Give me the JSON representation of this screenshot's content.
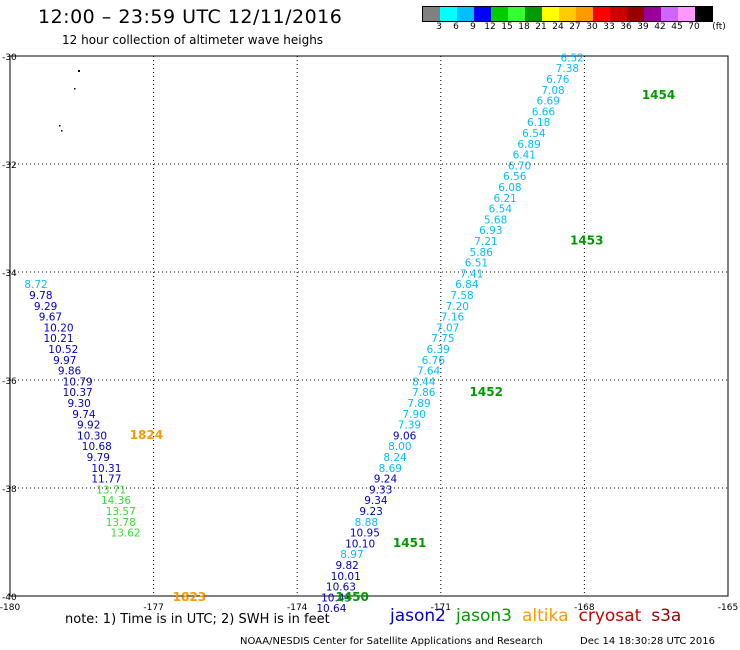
{
  "title": "12:00 – 23:59 UTC 12/11/2016",
  "subtitle": "12 hour collection of altimeter wave heighs",
  "colorbar": {
    "colors": [
      "#808080",
      "#00ffff",
      "#00bfff",
      "#0000ff",
      "#00cc00",
      "#33ff33",
      "#009900",
      "#ffff00",
      "#ffcc00",
      "#ff9900",
      "#ff0000",
      "#cc0000",
      "#990000",
      "#990099",
      "#cc66ff",
      "#ff99ff",
      "#000000"
    ],
    "ticks": [
      "3",
      "6",
      "9",
      "12",
      "15",
      "18",
      "21",
      "24",
      "27",
      "30",
      "33",
      "36",
      "39",
      "42",
      "45",
      "70",
      "(ft)"
    ]
  },
  "axes": {
    "lat_labels": [
      "-30",
      "-32",
      "-34",
      "-36",
      "-38",
      "-40"
    ],
    "lon_labels": [
      "-180",
      "-177",
      "-174",
      "-171",
      "-168",
      "-165"
    ]
  },
  "tracks": [
    {
      "satellite": "jason3",
      "time_labels": [
        {
          "text": "1454",
          "lat": -30.7,
          "lon": -166.8
        },
        {
          "text": "1453",
          "lat": -33.4,
          "lon": -168.3
        },
        {
          "text": "1452",
          "lat": -36.2,
          "lon": -170.4
        },
        {
          "text": "1451",
          "lat": -39.0,
          "lon": -172.0
        },
        {
          "text": "1450",
          "lat": -40.0,
          "lon": -173.2
        }
      ],
      "points": [
        {
          "lat": -30.1,
          "lon": -168.5,
          "v": "6.52",
          "c": "#00bfff"
        },
        {
          "lat": -30.3,
          "lon": -168.6,
          "v": "7.38",
          "c": "#00bfff"
        },
        {
          "lat": -30.5,
          "lon": -168.8,
          "v": "6.76",
          "c": "#00bfff"
        },
        {
          "lat": -30.7,
          "lon": -168.9,
          "v": "7.08",
          "c": "#00bfff"
        },
        {
          "lat": -30.9,
          "lon": -169.0,
          "v": "6.69",
          "c": "#00bfff"
        },
        {
          "lat": -31.1,
          "lon": -169.1,
          "v": "6.66",
          "c": "#00bfff"
        },
        {
          "lat": -31.3,
          "lon": -169.2,
          "v": "6.18",
          "c": "#00bfff"
        },
        {
          "lat": -31.5,
          "lon": -169.3,
          "v": "6.54",
          "c": "#00bfff"
        },
        {
          "lat": -31.7,
          "lon": -169.4,
          "v": "6.89",
          "c": "#00bfff"
        },
        {
          "lat": -31.9,
          "lon": -169.5,
          "v": "6.41",
          "c": "#00bfff"
        },
        {
          "lat": -32.1,
          "lon": -169.6,
          "v": "6.70",
          "c": "#00bfff"
        },
        {
          "lat": -32.3,
          "lon": -169.7,
          "v": "6.56",
          "c": "#00bfff"
        },
        {
          "lat": -32.5,
          "lon": -169.8,
          "v": "6.08",
          "c": "#00bfff"
        },
        {
          "lat": -32.7,
          "lon": -169.9,
          "v": "6.21",
          "c": "#00bfff"
        },
        {
          "lat": -32.9,
          "lon": -170.0,
          "v": "6.54",
          "c": "#00bfff"
        },
        {
          "lat": -33.1,
          "lon": -170.1,
          "v": "5.68",
          "c": "#00bfff"
        },
        {
          "lat": -33.3,
          "lon": -170.2,
          "v": "6.93",
          "c": "#00bfff"
        },
        {
          "lat": -33.5,
          "lon": -170.3,
          "v": "7.21",
          "c": "#00bfff"
        },
        {
          "lat": -33.7,
          "lon": -170.4,
          "v": "5.86",
          "c": "#00bfff"
        },
        {
          "lat": -33.9,
          "lon": -170.5,
          "v": "6.51",
          "c": "#00bfff"
        },
        {
          "lat": -34.1,
          "lon": -170.6,
          "v": "7.41",
          "c": "#00bfff"
        },
        {
          "lat": -34.3,
          "lon": -170.7,
          "v": "6.84",
          "c": "#00bfff"
        },
        {
          "lat": -34.5,
          "lon": -170.8,
          "v": "7.58",
          "c": "#00bfff"
        },
        {
          "lat": -34.7,
          "lon": -170.9,
          "v": "7.20",
          "c": "#00bfff"
        },
        {
          "lat": -34.9,
          "lon": -171.0,
          "v": "7.16",
          "c": "#00bfff"
        },
        {
          "lat": -35.1,
          "lon": -171.1,
          "v": "7.07",
          "c": "#00bfff"
        },
        {
          "lat": -35.3,
          "lon": -171.2,
          "v": "7.75",
          "c": "#00bfff"
        },
        {
          "lat": -35.5,
          "lon": -171.3,
          "v": "6.39",
          "c": "#00bfff"
        },
        {
          "lat": -35.7,
          "lon": -171.4,
          "v": "6.76",
          "c": "#00bfff"
        },
        {
          "lat": -35.9,
          "lon": -171.5,
          "v": "7.64",
          "c": "#00bfff"
        },
        {
          "lat": -36.1,
          "lon": -171.6,
          "v": "8.44",
          "c": "#00bfff"
        },
        {
          "lat": -36.3,
          "lon": -171.6,
          "v": "7.86",
          "c": "#00bfff"
        },
        {
          "lat": -36.5,
          "lon": -171.7,
          "v": "7.89",
          "c": "#00bfff"
        },
        {
          "lat": -36.7,
          "lon": -171.8,
          "v": "7.90",
          "c": "#00bfff"
        },
        {
          "lat": -36.9,
          "lon": -171.9,
          "v": "7.39",
          "c": "#00bfff"
        },
        {
          "lat": -37.1,
          "lon": -172.0,
          "v": "9.06",
          "c": "#0000cc"
        },
        {
          "lat": -37.3,
          "lon": -172.1,
          "v": "8.00",
          "c": "#00bfff"
        },
        {
          "lat": -37.5,
          "lon": -172.2,
          "v": "8.24",
          "c": "#00bfff"
        },
        {
          "lat": -37.7,
          "lon": -172.3,
          "v": "8.69",
          "c": "#00bfff"
        },
        {
          "lat": -37.9,
          "lon": -172.4,
          "v": "9.24",
          "c": "#0000cc"
        },
        {
          "lat": -38.1,
          "lon": -172.5,
          "v": "9.33",
          "c": "#0000cc"
        },
        {
          "lat": -38.3,
          "lon": -172.6,
          "v": "9.34",
          "c": "#0000cc"
        },
        {
          "lat": -38.5,
          "lon": -172.7,
          "v": "9.23",
          "c": "#0000cc"
        },
        {
          "lat": -38.7,
          "lon": -172.8,
          "v": "8.88",
          "c": "#00bfff"
        },
        {
          "lat": -38.9,
          "lon": -172.9,
          "v": "10.95",
          "c": "#0000cc"
        },
        {
          "lat": -39.1,
          "lon": -173.0,
          "v": "10.10",
          "c": "#0000cc"
        },
        {
          "lat": -39.3,
          "lon": -173.1,
          "v": "8.97",
          "c": "#00bfff"
        },
        {
          "lat": -39.5,
          "lon": -173.2,
          "v": "9.82",
          "c": "#0000cc"
        },
        {
          "lat": -39.7,
          "lon": -173.3,
          "v": "10.01",
          "c": "#0000cc"
        },
        {
          "lat": -39.9,
          "lon": -173.4,
          "v": "10.63",
          "c": "#0000cc"
        },
        {
          "lat": -40.1,
          "lon": -173.5,
          "v": "10.43",
          "c": "#0000cc"
        },
        {
          "lat": -40.3,
          "lon": -173.6,
          "v": "10.64",
          "c": "#0000cc"
        }
      ]
    },
    {
      "satellite": "altika",
      "time_labels": [
        {
          "text": "1824",
          "lat": -37.0,
          "lon": -177.5
        },
        {
          "text": "1823",
          "lat": -40.0,
          "lon": -176.6
        }
      ],
      "points": [
        {
          "lat": -34.3,
          "lon": -179.7,
          "v": "8.72",
          "c": "#00bfff"
        },
        {
          "lat": -34.5,
          "lon": -179.6,
          "v": "9.78",
          "c": "#0000cc"
        },
        {
          "lat": -34.7,
          "lon": -179.5,
          "v": "9.29",
          "c": "#0000cc"
        },
        {
          "lat": -34.9,
          "lon": -179.4,
          "v": "9.67",
          "c": "#0000cc"
        },
        {
          "lat": -35.1,
          "lon": -179.3,
          "v": "10.20",
          "c": "#0000cc"
        },
        {
          "lat": -35.3,
          "lon": -179.3,
          "v": "10.21",
          "c": "#0000cc"
        },
        {
          "lat": -35.5,
          "lon": -179.2,
          "v": "10.52",
          "c": "#0000cc"
        },
        {
          "lat": -35.7,
          "lon": -179.1,
          "v": "9.97",
          "c": "#0000cc"
        },
        {
          "lat": -35.9,
          "lon": -179.0,
          "v": "9.86",
          "c": "#0000cc"
        },
        {
          "lat": -36.1,
          "lon": -178.9,
          "v": "10.79",
          "c": "#0000cc"
        },
        {
          "lat": -36.3,
          "lon": -178.9,
          "v": "10.37",
          "c": "#0000cc"
        },
        {
          "lat": -36.5,
          "lon": -178.8,
          "v": "9.30",
          "c": "#0000cc"
        },
        {
          "lat": -36.7,
          "lon": -178.7,
          "v": "9.74",
          "c": "#0000cc"
        },
        {
          "lat": -36.9,
          "lon": -178.6,
          "v": "9.92",
          "c": "#0000cc"
        },
        {
          "lat": -37.1,
          "lon": -178.6,
          "v": "10.30",
          "c": "#0000cc"
        },
        {
          "lat": -37.3,
          "lon": -178.5,
          "v": "10.68",
          "c": "#0000cc"
        },
        {
          "lat": -37.5,
          "lon": -178.4,
          "v": "9.79",
          "c": "#0000cc"
        },
        {
          "lat": -37.7,
          "lon": -178.3,
          "v": "10.31",
          "c": "#0000cc"
        },
        {
          "lat": -37.9,
          "lon": -178.3,
          "v": "11.77",
          "c": "#0000cc"
        },
        {
          "lat": -38.1,
          "lon": -178.2,
          "v": "13.71",
          "c": "#33dd33"
        },
        {
          "lat": -38.3,
          "lon": -178.1,
          "v": "14.36",
          "c": "#33dd33"
        },
        {
          "lat": -38.5,
          "lon": -178.0,
          "v": "13.57",
          "c": "#33dd33"
        },
        {
          "lat": -38.7,
          "lon": -178.0,
          "v": "13.78",
          "c": "#33dd33"
        },
        {
          "lat": -38.9,
          "lon": -177.9,
          "v": "13.62",
          "c": "#33dd33"
        }
      ]
    }
  ],
  "note": "note: 1) Time is in UTC; 2) SWH is in feet",
  "legend": [
    {
      "name": "jason2",
      "color": "#0000cc"
    },
    {
      "name": "jason3",
      "color": "#009900"
    },
    {
      "name": "altika",
      "color": "#ff9900"
    },
    {
      "name": "cryosat",
      "color": "#cc0000"
    },
    {
      "name": "s3a",
      "color": "#990000"
    }
  ],
  "footer_left": "NOAA/NESDIS Center for Satellite Applications and Research",
  "footer_right": "Dec 14 18:30:28 UTC 2016"
}
